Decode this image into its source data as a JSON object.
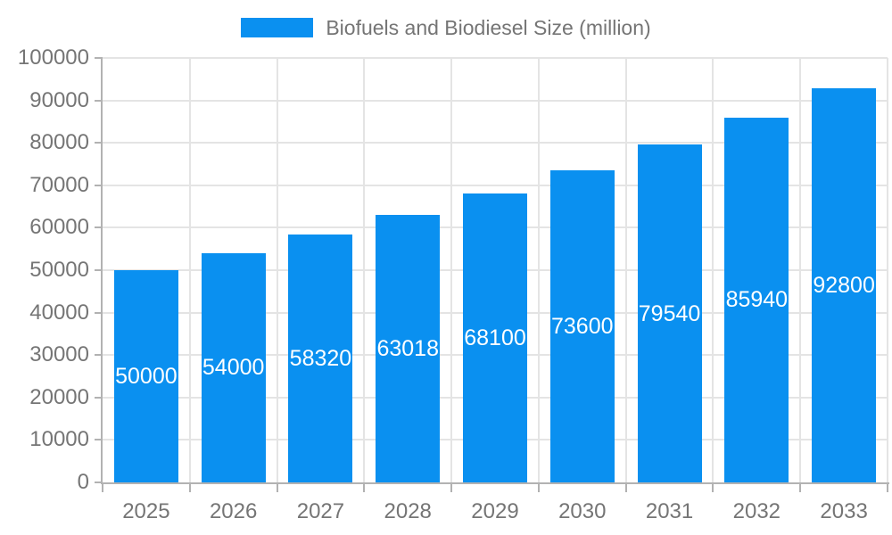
{
  "chart_data": {
    "type": "bar",
    "title": "Biofuels and Biodiesel Size (million)",
    "legend_position": "top",
    "categories": [
      "2025",
      "2026",
      "2027",
      "2028",
      "2029",
      "2030",
      "2031",
      "2032",
      "2033"
    ],
    "values": [
      50000,
      54000,
      58320,
      63018,
      68100,
      73600,
      79540,
      85940,
      92800
    ],
    "value_labels": [
      "50000",
      "54000",
      "58320",
      "63018",
      "68100",
      "73600",
      "79540",
      "85940",
      "92800"
    ],
    "xlabel": "",
    "ylabel": "",
    "ylim": [
      0,
      100000
    ],
    "yticks": [
      0,
      10000,
      20000,
      30000,
      40000,
      50000,
      60000,
      70000,
      80000,
      90000,
      100000
    ],
    "grid": true,
    "colors": {
      "bar": "#0a90f0",
      "grid": "#e4e4e4",
      "axis": "#b2b2b2",
      "text": "#757575",
      "value_text": "#ffffff",
      "background": "#ffffff"
    }
  }
}
